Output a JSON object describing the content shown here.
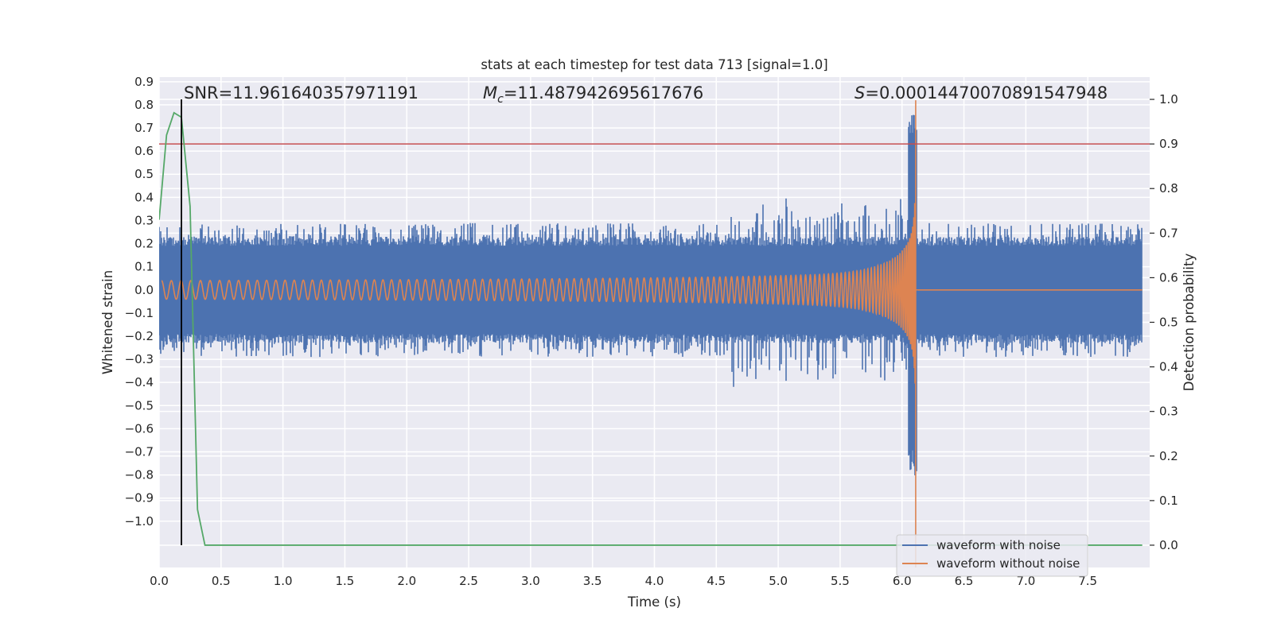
{
  "chart_data": {
    "type": "line",
    "title": "stats at each timestep for test data 713 [signal=1.0]",
    "xlabel": "Time (s)",
    "ylabel": "Whitened strain",
    "y2label": "Detection probability",
    "xlim": [
      0.0,
      8.0
    ],
    "ylim": [
      -1.2,
      0.92
    ],
    "y2lim": [
      -0.05,
      1.05
    ],
    "x_ticks": [
      0.0,
      0.5,
      1.0,
      1.5,
      2.0,
      2.5,
      3.0,
      3.5,
      4.0,
      4.5,
      5.0,
      5.5,
      6.0,
      6.5,
      7.0,
      7.5
    ],
    "x_tick_labels": [
      "0.0",
      "0.5",
      "1.0",
      "1.5",
      "2.0",
      "2.5",
      "3.0",
      "3.5",
      "4.0",
      "4.5",
      "5.0",
      "5.5",
      "6.0",
      "6.5",
      "7.0",
      "7.5"
    ],
    "y_ticks": [
      0.9,
      0.8,
      0.7,
      0.6,
      0.5,
      0.4,
      0.3,
      0.2,
      0.1,
      0.0,
      -0.1,
      -0.2,
      -0.3,
      -0.4,
      -0.5,
      -0.6,
      -0.7,
      -0.8,
      -0.9,
      -1.0
    ],
    "y_tick_labels": [
      "0.9",
      "0.8",
      "0.7",
      "0.6",
      "0.5",
      "0.4",
      "0.3",
      "0.2",
      "0.1",
      "0.0",
      "−0.1",
      "−0.2",
      "−0.3",
      "−0.4",
      "−0.5",
      "−0.6",
      "−0.7",
      "−0.8",
      "−0.9",
      "−1.0"
    ],
    "y2_ticks": [
      0.0,
      0.1,
      0.2,
      0.3,
      0.4,
      0.5,
      0.6,
      0.7,
      0.8,
      0.9,
      1.0
    ],
    "y2_tick_labels": [
      "0.0",
      "0.1",
      "0.2",
      "0.3",
      "0.4",
      "0.5",
      "0.6",
      "0.7",
      "0.8",
      "0.9",
      "1.0"
    ],
    "grid": true,
    "legend_position": "bottom-right",
    "merger_time": 6.11,
    "series": [
      {
        "name": "waveform with noise",
        "color": "#4c72b0",
        "axis": "left",
        "description_values": {
          "noise_envelope": 0.23,
          "noise_spike_max": 0.29,
          "peak_positive": 0.77,
          "peak_negative": -0.81
        }
      },
      {
        "name": "waveform without noise",
        "color": "#dd8452",
        "axis": "left",
        "description_values": {
          "initial_amplitude": 0.04,
          "peak_positive": 0.82,
          "peak_negative": -1.2
        }
      },
      {
        "name": "detection probability",
        "color": "#55a868",
        "axis": "right",
        "x": [
          0.0,
          0.06,
          0.12,
          0.18,
          0.25,
          0.31,
          0.37,
          0.43,
          1.0,
          2.0,
          3.0,
          4.0,
          5.0,
          6.0,
          7.0,
          7.94
        ],
        "values": [
          0.73,
          0.92,
          0.97,
          0.96,
          0.76,
          0.08,
          0.0,
          0.0,
          0.0,
          0.0,
          0.0,
          0.0,
          0.0,
          0.0,
          0.0,
          0.0
        ]
      }
    ],
    "threshold_line": {
      "value": 0.9,
      "axis": "right",
      "color": "#c44e52"
    },
    "vertical_marker": {
      "x": 0.18,
      "color": "#000000"
    },
    "annotations": {
      "snr": "SNR=11.961640357971191",
      "mc_symbol": "M",
      "mc_subscript": "c",
      "mc_value": "=11.487942695617676",
      "s_symbol": "S",
      "s_value": "=0.00014470070891547948"
    },
    "colors": {
      "plot_background": "#eaeaf2",
      "grid": "#ffffff",
      "text": "#262626"
    }
  }
}
